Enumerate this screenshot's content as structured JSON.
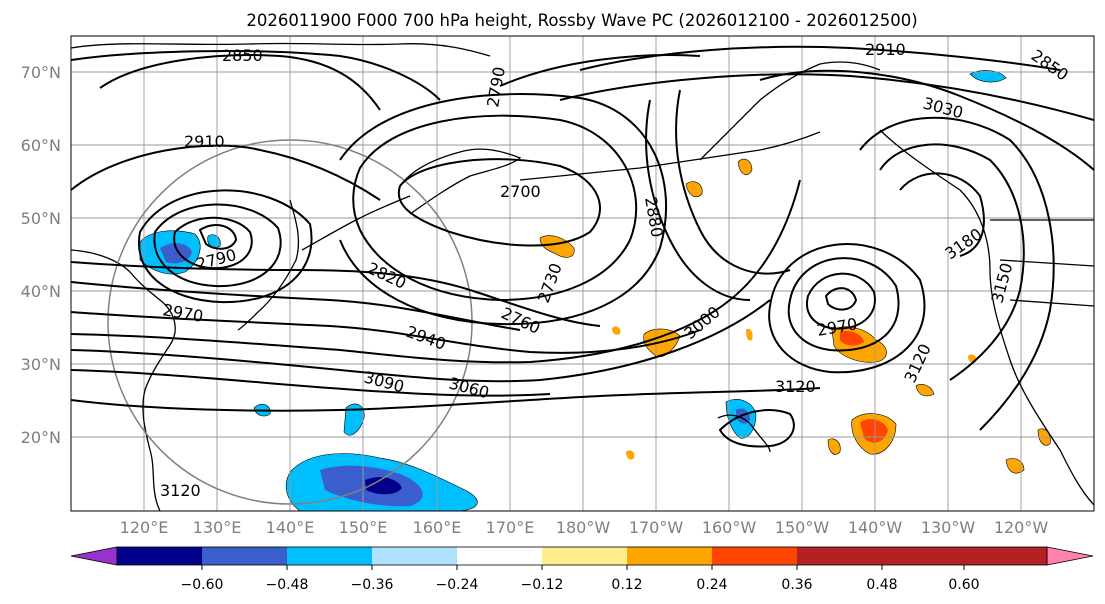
{
  "title": "2026011900 F000 700 hPa height, Rossby Wave PC (2026012100 - 2026012500)",
  "lat_labels": [
    "70°N",
    "60°N",
    "50°N",
    "40°N",
    "30°N",
    "20°N"
  ],
  "lon_labels": [
    "120°E",
    "130°E",
    "140°E",
    "150°E",
    "160°E",
    "170°E",
    "180°W",
    "170°W",
    "160°W",
    "150°W",
    "140°W",
    "130°W",
    "120°W"
  ],
  "contour_labels": [
    "2850",
    "2790",
    "2910",
    "2910",
    "3030",
    "2700",
    "2880",
    "2790",
    "2820",
    "2730",
    "2760",
    "2970",
    "2940",
    "3000",
    "3090",
    "3060",
    "2970",
    "3120",
    "3120",
    "3180",
    "3150",
    "3120",
    "2850"
  ],
  "colorbar": {
    "ticks": [
      "−0.60",
      "−0.48",
      "−0.36",
      "−0.24",
      "−0.12",
      "0.12",
      "0.24",
      "0.36",
      "0.48",
      "0.60"
    ],
    "colors": [
      "#9932cc",
      "#00008b",
      "#3a5fcd",
      "#00bfff",
      "#b0e2ff",
      "#ffffff",
      "#ffec8b",
      "#ffa500",
      "#ff4500",
      "#b22222",
      "#ff82ab"
    ]
  },
  "map_extent": {
    "lon_min_east": 110,
    "lon_max_east": 250,
    "lat_min": 10,
    "lat_max": 75
  }
}
